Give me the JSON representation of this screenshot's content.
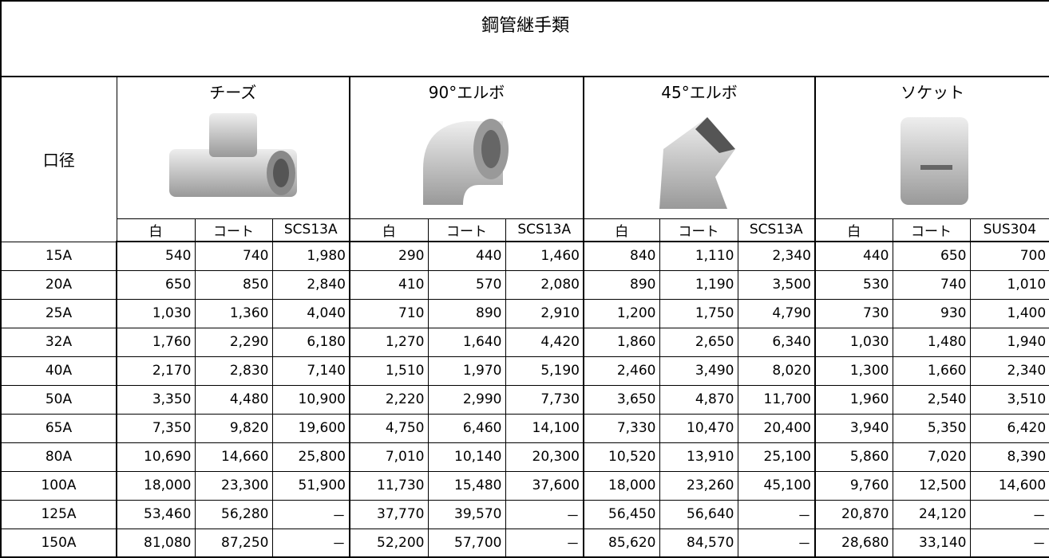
{
  "title": "鋼管継手類",
  "header": {
    "row_label": "口径",
    "groups": [
      "チーズ",
      "90°エルボ",
      "45°エルボ",
      "ソケット"
    ],
    "subheaders": [
      "白",
      "コート",
      "SCS13A",
      "白",
      "コート",
      "SCS13A",
      "白",
      "コート",
      "SCS13A",
      "白",
      "コート",
      "SUS304"
    ]
  },
  "table": {
    "rows": [
      [
        "15A",
        "540",
        "740",
        "1,980",
        "290",
        "440",
        "1,460",
        "840",
        "1,110",
        "2,340",
        "440",
        "650",
        "700"
      ],
      [
        "20A",
        "650",
        "850",
        "2,840",
        "410",
        "570",
        "2,080",
        "890",
        "1,190",
        "3,500",
        "530",
        "740",
        "1,010"
      ],
      [
        "25A",
        "1,030",
        "1,360",
        "4,040",
        "710",
        "890",
        "2,910",
        "1,200",
        "1,750",
        "4,790",
        "730",
        "930",
        "1,400"
      ],
      [
        "32A",
        "1,760",
        "2,290",
        "6,180",
        "1,270",
        "1,640",
        "4,420",
        "1,860",
        "2,650",
        "6,340",
        "1,030",
        "1,480",
        "1,940"
      ],
      [
        "40A",
        "2,170",
        "2,830",
        "7,140",
        "1,510",
        "1,970",
        "5,190",
        "2,460",
        "3,490",
        "8,020",
        "1,300",
        "1,660",
        "2,340"
      ],
      [
        "50A",
        "3,350",
        "4,480",
        "10,900",
        "2,220",
        "2,990",
        "7,730",
        "3,650",
        "4,870",
        "11,700",
        "1,960",
        "2,540",
        "3,510"
      ],
      [
        "65A",
        "7,350",
        "9,820",
        "19,600",
        "4,750",
        "6,460",
        "14,100",
        "7,330",
        "10,470",
        "20,400",
        "3,940",
        "5,350",
        "6,420"
      ],
      [
        "80A",
        "10,690",
        "14,660",
        "25,800",
        "7,010",
        "10,140",
        "20,300",
        "10,520",
        "13,910",
        "25,100",
        "5,860",
        "7,020",
        "8,390"
      ],
      [
        "100A",
        "18,000",
        "23,300",
        "51,900",
        "11,730",
        "15,480",
        "37,600",
        "18,000",
        "23,260",
        "45,100",
        "9,760",
        "12,500",
        "14,600"
      ],
      [
        "125A",
        "53,460",
        "56,280",
        "－",
        "37,770",
        "39,570",
        "－",
        "56,450",
        "56,640",
        "－",
        "20,870",
        "24,120",
        "－"
      ],
      [
        "150A",
        "81,080",
        "87,250",
        "－",
        "52,200",
        "57,700",
        "－",
        "85,620",
        "84,570",
        "－",
        "28,680",
        "33,140",
        "－"
      ]
    ]
  }
}
